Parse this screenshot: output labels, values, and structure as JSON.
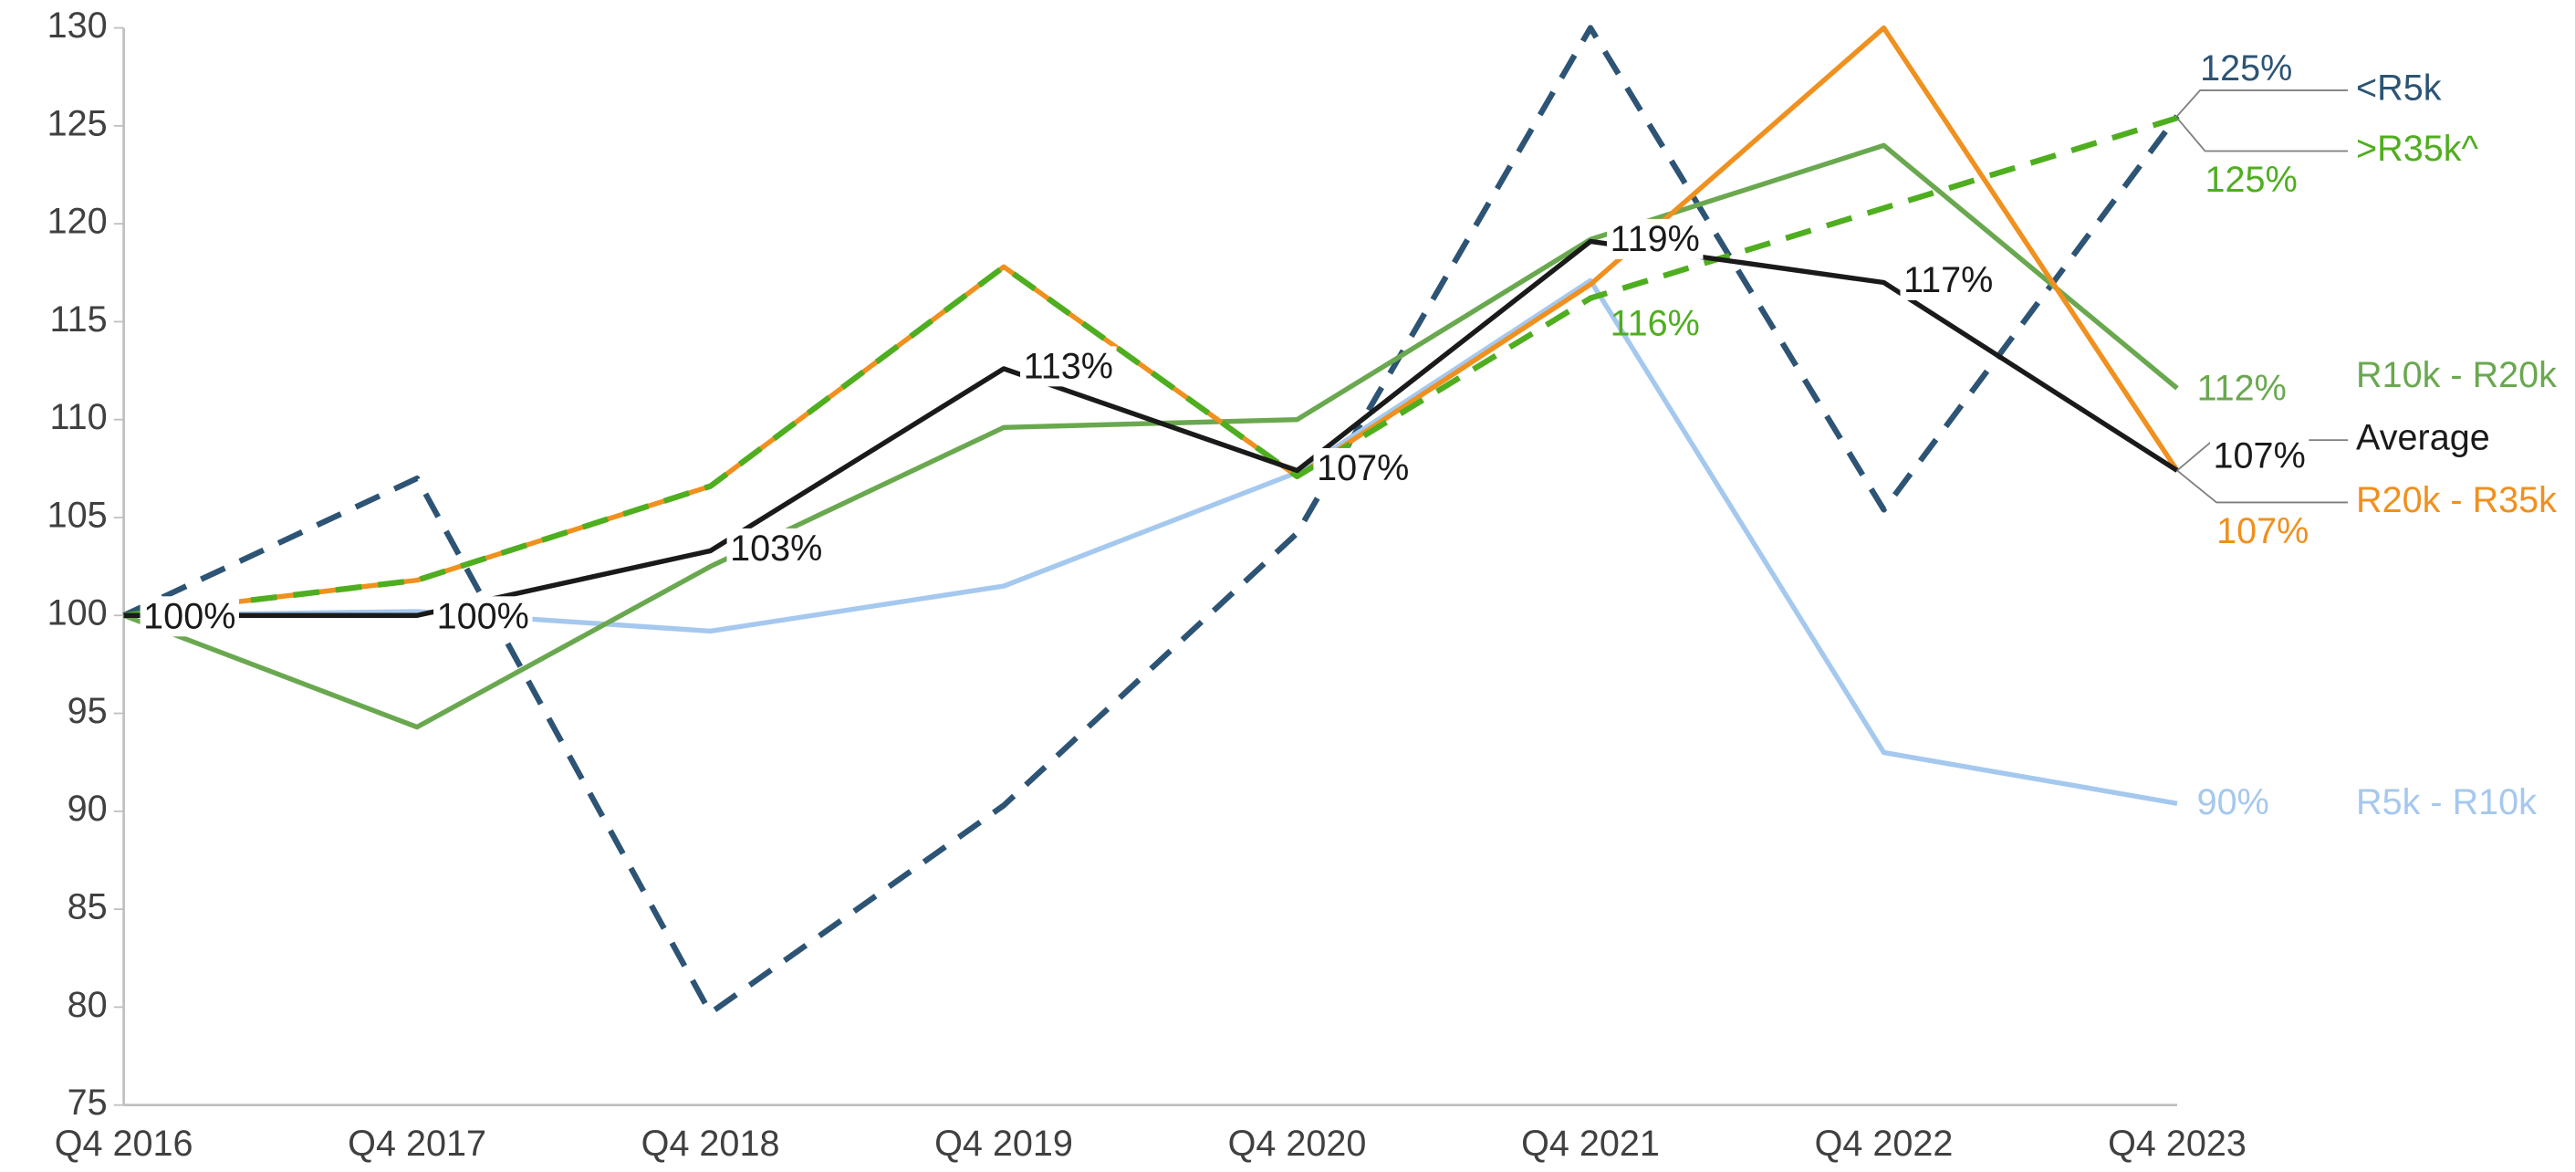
{
  "chart_data": {
    "type": "line",
    "categories": [
      "Q4 2016",
      "Q4 2017",
      "Q4 2018",
      "Q4 2019",
      "Q4 2020",
      "Q4 2021",
      "Q4 2022",
      "Q4 2023"
    ],
    "ylim": [
      75,
      130
    ],
    "yticks": [
      75,
      80,
      85,
      90,
      95,
      100,
      105,
      110,
      115,
      120,
      125,
      130
    ],
    "series": [
      {
        "name": "<R5k",
        "color": "#2d5474",
        "dashed": true,
        "values": [
          100,
          107,
          79.7,
          90.3,
          104.2,
          130,
          105.4,
          125.5
        ],
        "value_labels": [
          null,
          null,
          null,
          null,
          null,
          null,
          null,
          "125%"
        ]
      },
      {
        "name": "R5k - R10k",
        "color": "#a5c8ee",
        "dashed": false,
        "values": [
          100,
          100.2,
          99.2,
          101.5,
          107.3,
          117.1,
          93,
          90.4
        ],
        "value_labels": [
          null,
          null,
          null,
          null,
          null,
          null,
          null,
          "90%"
        ]
      },
      {
        "name": "R10k - R20k",
        "color": "#6aa84f",
        "dashed": false,
        "values": [
          100,
          94.3,
          102.5,
          109.6,
          110,
          119.2,
          124,
          111.6
        ],
        "value_labels": [
          null,
          null,
          null,
          null,
          null,
          null,
          null,
          "112%"
        ]
      },
      {
        "name": "R20k - R35k",
        "color": "#f0901e",
        "dashed": false,
        "values": [
          100,
          101.8,
          106.6,
          117.8,
          107.1,
          116.9,
          130,
          107.4
        ],
        "value_labels": [
          null,
          null,
          null,
          null,
          null,
          null,
          null,
          "107%"
        ]
      },
      {
        "name": ">R35k^",
        "color": "#4fae1f",
        "dashed": true,
        "values": [
          100,
          101.8,
          106.6,
          117.8,
          107.1,
          116.2,
          120.8,
          125.4
        ],
        "value_labels": [
          null,
          null,
          null,
          null,
          null,
          "116%",
          null,
          "125%"
        ]
      },
      {
        "name": "Average",
        "color": "#1a1a1a",
        "dashed": false,
        "values": [
          100,
          100,
          103.3,
          112.6,
          107.4,
          119.1,
          117,
          107.4
        ],
        "value_labels": [
          "100%",
          "100%",
          "103%",
          "113%",
          "107%",
          "119%",
          "117%",
          "107%"
        ]
      }
    ]
  }
}
